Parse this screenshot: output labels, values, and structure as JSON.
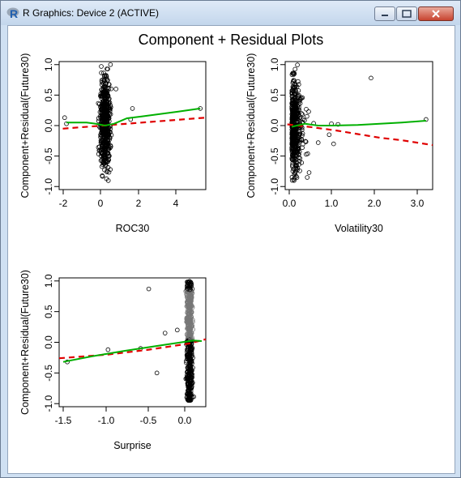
{
  "window": {
    "title": "R Graphics: Device 2 (ACTIVE)",
    "app_icon": "r-logo-icon",
    "controls": [
      "minimize-icon",
      "maximize-icon",
      "close-icon"
    ],
    "close_color": "#c8432f"
  },
  "plot": {
    "main_title": "Component + Residual Plots",
    "ylabel": "Component+Residual(Future30)"
  },
  "chart_data": [
    {
      "type": "scatter",
      "xlabel": "ROC30",
      "ylabel": "Component+Residual(Future30)",
      "xlim": [
        -2.5,
        5.5
      ],
      "ylim": [
        -1.05,
        1.05
      ],
      "xticks": [
        "-2",
        "0",
        "2",
        "4"
      ],
      "yticks": [
        "-1.0",
        "-0.5",
        "0.0",
        "0.5",
        "1.0"
      ],
      "points_cluster": {
        "x_center": 0,
        "x_spread": 0.3,
        "y_min": -0.95,
        "y_max": 1.0
      },
      "outliers": [
        [
          -2.2,
          0.13
        ],
        [
          -2.1,
          0.03
        ],
        [
          1.5,
          0.28
        ],
        [
          1.4,
          0.1
        ],
        [
          5.2,
          0.28
        ],
        [
          0.6,
          0.6
        ],
        [
          0.3,
          1.0
        ]
      ],
      "series": [
        {
          "name": "",
          "style": "dashed",
          "color": "#e00000",
          "x": [
            -2.3,
            5.5
          ],
          "y": [
            -0.05,
            0.13
          ]
        },
        {
          "name": "",
          "style": "solid",
          "color": "#00b000",
          "x": [
            -2.1,
            -1.0,
            -0.5,
            0.0,
            0.5,
            1.2,
            2.0,
            3.0,
            4.0,
            5.2
          ],
          "y": [
            0.05,
            0.05,
            0.03,
            0.0,
            0.03,
            0.12,
            0.15,
            0.19,
            0.23,
            0.28
          ]
        }
      ]
    },
    {
      "type": "scatter",
      "xlabel": "Volatility30",
      "ylabel": "Component+Residual(Future30)",
      "xlim": [
        -0.15,
        3.2
      ],
      "ylim": [
        -1.05,
        1.05
      ],
      "xticks": [
        "0.0",
        "1.0",
        "2.0",
        "3.0"
      ],
      "yticks": [
        "-1.0",
        "-0.5",
        "0.0",
        "0.5",
        "1.0"
      ],
      "points_cluster": {
        "x_center": 0.05,
        "x_spread": 0.25,
        "y_min": -0.95,
        "y_max": 1.0
      },
      "outliers": [
        [
          1.8,
          0.78
        ],
        [
          3.05,
          0.1
        ],
        [
          0.9,
          0.03
        ],
        [
          0.6,
          -0.28
        ],
        [
          0.95,
          -0.3
        ],
        [
          1.05,
          0.02
        ],
        [
          0.85,
          -0.15
        ]
      ],
      "series": [
        {
          "name": "",
          "style": "dashed",
          "color": "#e00000",
          "x": [
            -0.1,
            0.5,
            1.0,
            1.5,
            2.0,
            2.5,
            3.2
          ],
          "y": [
            0.02,
            -0.03,
            -0.08,
            -0.14,
            -0.2,
            -0.24,
            -0.32
          ]
        },
        {
          "name": "",
          "style": "solid",
          "color": "#00b000",
          "x": [
            0.0,
            0.3,
            0.6,
            0.9,
            1.5,
            2.0,
            2.5,
            3.05
          ],
          "y": [
            -0.02,
            0.03,
            0.0,
            0.0,
            0.01,
            0.03,
            0.05,
            0.08
          ]
        }
      ]
    },
    {
      "type": "scatter",
      "xlabel": "Surprise",
      "ylabel": "Component+Residual(Future30)",
      "xlim": [
        -1.6,
        0.2
      ],
      "ylim": [
        -1.05,
        1.05
      ],
      "xticks": [
        "-1.5",
        "-1.0",
        "-0.5",
        "0.0"
      ],
      "yticks": [
        "-1.0",
        "-0.5",
        "0.0",
        "0.5",
        "1.0"
      ],
      "points_cluster": {
        "x_center": 0.0,
        "x_spread": 0.04,
        "y_min": -0.95,
        "y_max": 1.0
      },
      "outliers": [
        [
          -1.5,
          -0.32
        ],
        [
          -1.0,
          -0.12
        ],
        [
          -0.5,
          0.87
        ],
        [
          -0.4,
          -0.5
        ],
        [
          -0.3,
          0.15
        ],
        [
          -0.15,
          0.2
        ],
        [
          -0.6,
          -0.1
        ]
      ],
      "series": [
        {
          "name": "",
          "style": "dashed",
          "color": "#e00000",
          "x": [
            -1.6,
            -1.0,
            -0.5,
            0.0,
            0.2
          ],
          "y": [
            -0.26,
            -0.2,
            -0.12,
            -0.02,
            0.05
          ]
        },
        {
          "name": "",
          "style": "solid",
          "color": "#00b000",
          "x": [
            -1.55,
            -1.2,
            -0.8,
            -0.4,
            -0.1,
            0.05,
            0.15
          ],
          "y": [
            -0.32,
            -0.23,
            -0.14,
            -0.06,
            0.0,
            0.03,
            0.02
          ]
        }
      ]
    }
  ]
}
